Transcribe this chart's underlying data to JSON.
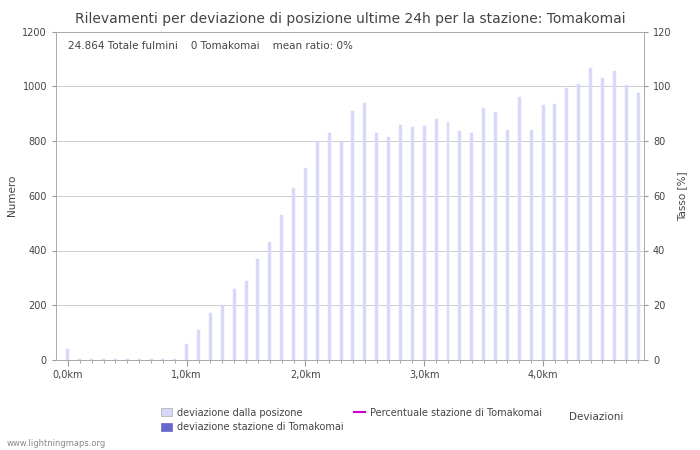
{
  "title": "Rilevamenti per deviazione di posizione ultime 24h per la stazione: Tomakomai",
  "subtitle": "24.864 Totale fulmini    0 Tomakomai    mean ratio: 0%",
  "xlabel": "Deviazioni",
  "ylabel_left": "Numero",
  "ylabel_right": "Tasso [%]",
  "bar_color_light": "#d8d8f8",
  "bar_color_dark": "#6666cc",
  "line_color": "#cc00cc",
  "background_color": "#ffffff",
  "grid_color": "#bbbbbb",
  "text_color": "#444444",
  "watermark": "www.lightningmaps.org",
  "legend": {
    "bar_light": "deviazione dalla posizone",
    "bar_dark": "deviazione stazione di Tomakomai",
    "line": "Percentuale stazione di Tomakomai"
  },
  "xtick_labels": [
    "0,0km",
    "1,0km",
    "2,0km",
    "3,0km",
    "4,0km"
  ],
  "xtick_positions": [
    0,
    10,
    20,
    30,
    40
  ],
  "ylim_left": [
    0,
    1200
  ],
  "ylim_right": [
    0,
    120
  ],
  "yticks_left": [
    0,
    200,
    400,
    600,
    800,
    1000,
    1200
  ],
  "yticks_right": [
    0,
    20,
    40,
    60,
    80,
    100,
    120
  ],
  "bar_values": [
    40,
    3,
    3,
    3,
    3,
    3,
    3,
    3,
    3,
    3,
    60,
    110,
    170,
    200,
    260,
    290,
    370,
    430,
    530,
    630,
    700,
    800,
    830,
    795,
    910,
    940,
    830,
    815,
    860,
    850,
    855,
    880,
    870,
    835,
    830,
    920,
    905,
    840,
    960,
    840,
    930,
    935,
    995,
    1010,
    1065,
    1030,
    1055,
    1005,
    975
  ],
  "n_bars": 49,
  "bar_width": 0.25,
  "title_fontsize": 10,
  "subtitle_fontsize": 7.5,
  "axis_fontsize": 7.5,
  "tick_fontsize": 7
}
